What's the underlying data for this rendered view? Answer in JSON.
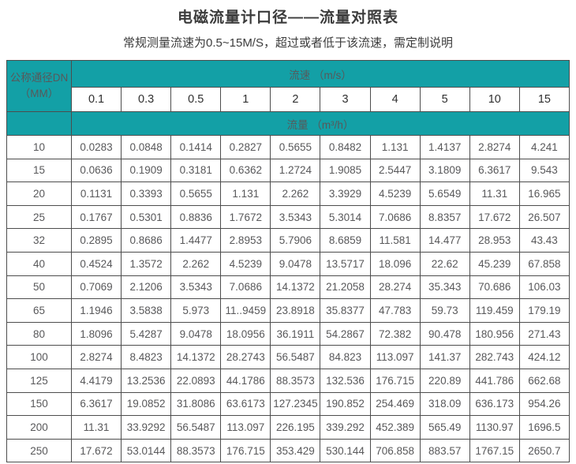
{
  "page": {
    "title": "电磁流量计口径——流量对照表",
    "subtitle": "常规测量流速为0.5~15M/S，超过或者低于该流速，需定制说明"
  },
  "colors": {
    "header_teal": "#13a0a6",
    "grid_border": "#4d4d4d",
    "data_text": "#58585a",
    "title_text": "#3b3b3b"
  },
  "table": {
    "corner_header_line1": "公称通径DN",
    "corner_header_line2": "（MM）",
    "velocity_header": "流速 （m/s）",
    "flow_header": "流量 （m³/h）",
    "velocities": [
      "0.1",
      "0.3",
      "0.5",
      "1",
      "2",
      "3",
      "4",
      "5",
      "10",
      "15"
    ],
    "rows": [
      {
        "dn": "10",
        "values": [
          "0.0283",
          "0.0848",
          "0.1414",
          "0.2827",
          "0.5655",
          "0.8482",
          "1.131",
          "1.4137",
          "2.8274",
          "4.241"
        ]
      },
      {
        "dn": "15",
        "values": [
          "0.0636",
          "0.1909",
          "0.3181",
          "0.6362",
          "1.2724",
          "1.9085",
          "2.5447",
          "3.1809",
          "6.3617",
          "9.543"
        ]
      },
      {
        "dn": "20",
        "values": [
          "0.1131",
          "0.3393",
          "0.5655",
          "1.131",
          "2.262",
          "3.3929",
          "4.5239",
          "5.6549",
          "11.31",
          "16.965"
        ]
      },
      {
        "dn": "25",
        "values": [
          "0.1767",
          "0.5301",
          "0.8836",
          "1.7672",
          "3.5343",
          "5.3014",
          "7.0686",
          "8.8357",
          "17.672",
          "26.507"
        ]
      },
      {
        "dn": "32",
        "values": [
          "0.2895",
          "0.8686",
          "1.4477",
          "2.8953",
          "5.7906",
          "8.6859",
          "11.581",
          "14.477",
          "28.953",
          "43.43"
        ]
      },
      {
        "dn": "40",
        "values": [
          "0.4524",
          "1.3572",
          "2.262",
          "4.5239",
          "9.0478",
          "13.5717",
          "18.096",
          "22.62",
          "45.239",
          "67.858"
        ]
      },
      {
        "dn": "50",
        "values": [
          "0.7069",
          "2.1206",
          "3.5343",
          "7.0686",
          "14.1372",
          "21.2058",
          "28.274",
          "35.343",
          "70.686",
          "106.03"
        ]
      },
      {
        "dn": "65",
        "values": [
          "1.1946",
          "3.5838",
          "5.973",
          "11..9459",
          "23.8918",
          "35.8377",
          "47.783",
          "59.73",
          "119.459",
          "179.19"
        ]
      },
      {
        "dn": "80",
        "values": [
          "1.8096",
          "5.4287",
          "9.0478",
          "18.0956",
          "36.1911",
          "54.2867",
          "72.382",
          "90.478",
          "180.956",
          "271.43"
        ]
      },
      {
        "dn": "100",
        "values": [
          "2.8274",
          "8.4823",
          "14.1372",
          "28.2743",
          "56.5487",
          "84.823",
          "113.097",
          "141.37",
          "282.743",
          "424.12"
        ]
      },
      {
        "dn": "125",
        "values": [
          "4.4179",
          "13.2536",
          "22.0893",
          "44.1786",
          "88.3573",
          "132.536",
          "176.715",
          "220.89",
          "441.786",
          "662.68"
        ]
      },
      {
        "dn": "150",
        "values": [
          "6.3617",
          "19.0852",
          "31.8086",
          "63.6173",
          "127.2345",
          "190.852",
          "254.469",
          "318.09",
          "636.173",
          "954.26"
        ]
      },
      {
        "dn": "200",
        "values": [
          "11.31",
          "33.9292",
          "56.5487",
          "113.097",
          "226.195",
          "339.292",
          "452.389",
          "565.49",
          "1130.97",
          "1696.5"
        ]
      },
      {
        "dn": "250",
        "values": [
          "17.672",
          "53.0144",
          "88.3573",
          "176.715",
          "353.429",
          "530.144",
          "706.858",
          "883.57",
          "1767.15",
          "2650.7"
        ]
      }
    ]
  }
}
